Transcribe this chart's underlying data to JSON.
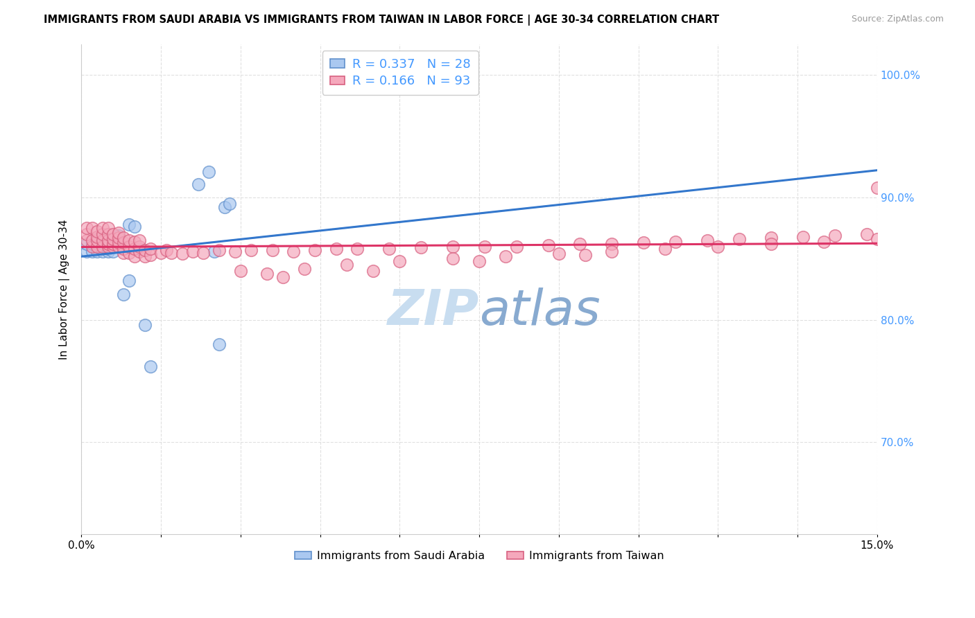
{
  "title": "IMMIGRANTS FROM SAUDI ARABIA VS IMMIGRANTS FROM TAIWAN IN LABOR FORCE | AGE 30-34 CORRELATION CHART",
  "source": "Source: ZipAtlas.com",
  "ylabel": "In Labor Force | Age 30-34",
  "x_min": 0.0,
  "x_max": 0.15,
  "y_min": 0.625,
  "y_max": 1.025,
  "y_ticks": [
    0.7,
    0.8,
    0.9,
    1.0
  ],
  "x_ticks": [
    0.0,
    0.015,
    0.03,
    0.045,
    0.06,
    0.075,
    0.09,
    0.105,
    0.12,
    0.135,
    0.15
  ],
  "saudi_R": 0.337,
  "saudi_N": 28,
  "taiwan_R": 0.166,
  "taiwan_N": 93,
  "saudi_color": "#aac8f0",
  "taiwan_color": "#f5a8bc",
  "saudi_edge": "#6090cc",
  "taiwan_edge": "#d86080",
  "trend_saudi_color": "#3377cc",
  "trend_taiwan_color": "#dd3366",
  "dashed_line_color": "#88aadd",
  "grid_color": "#e0e0e0",
  "right_axis_color": "#4499ff",
  "saudi_x": [
    0.001,
    0.001,
    0.002,
    0.002,
    0.003,
    0.003,
    0.003,
    0.004,
    0.004,
    0.005,
    0.005,
    0.005,
    0.006,
    0.006,
    0.007,
    0.008,
    0.009,
    0.009,
    0.01,
    0.011,
    0.012,
    0.013,
    0.022,
    0.024,
    0.025,
    0.026,
    0.027,
    0.028
  ],
  "saudi_y": [
    0.856,
    0.862,
    0.856,
    0.862,
    0.856,
    0.862,
    0.866,
    0.856,
    0.862,
    0.856,
    0.858,
    0.864,
    0.856,
    0.862,
    0.869,
    0.821,
    0.832,
    0.878,
    0.876,
    0.858,
    0.796,
    0.762,
    0.911,
    0.921,
    0.856,
    0.78,
    0.892,
    0.895
  ],
  "taiwan_x": [
    0.001,
    0.001,
    0.001,
    0.002,
    0.002,
    0.002,
    0.003,
    0.003,
    0.003,
    0.003,
    0.004,
    0.004,
    0.004,
    0.004,
    0.005,
    0.005,
    0.005,
    0.005,
    0.005,
    0.006,
    0.006,
    0.006,
    0.006,
    0.007,
    0.007,
    0.007,
    0.007,
    0.008,
    0.008,
    0.008,
    0.008,
    0.009,
    0.009,
    0.009,
    0.01,
    0.01,
    0.01,
    0.011,
    0.011,
    0.011,
    0.012,
    0.012,
    0.013,
    0.013,
    0.015,
    0.016,
    0.017,
    0.019,
    0.021,
    0.023,
    0.026,
    0.029,
    0.032,
    0.036,
    0.04,
    0.044,
    0.048,
    0.052,
    0.058,
    0.064,
    0.07,
    0.076,
    0.082,
    0.088,
    0.094,
    0.1,
    0.106,
    0.112,
    0.118,
    0.124,
    0.13,
    0.136,
    0.142,
    0.148,
    0.03,
    0.035,
    0.042,
    0.05,
    0.06,
    0.07,
    0.08,
    0.09,
    0.1,
    0.11,
    0.12,
    0.13,
    0.14,
    0.15,
    0.15,
    0.038,
    0.055,
    0.075,
    0.095
  ],
  "taiwan_y": [
    0.865,
    0.87,
    0.875,
    0.86,
    0.865,
    0.875,
    0.86,
    0.865,
    0.868,
    0.872,
    0.86,
    0.865,
    0.87,
    0.875,
    0.86,
    0.862,
    0.865,
    0.87,
    0.875,
    0.86,
    0.862,
    0.866,
    0.87,
    0.86,
    0.863,
    0.867,
    0.871,
    0.855,
    0.858,
    0.863,
    0.867,
    0.855,
    0.86,
    0.865,
    0.852,
    0.858,
    0.864,
    0.856,
    0.86,
    0.865,
    0.852,
    0.857,
    0.853,
    0.858,
    0.855,
    0.857,
    0.855,
    0.854,
    0.856,
    0.855,
    0.857,
    0.856,
    0.857,
    0.857,
    0.856,
    0.857,
    0.858,
    0.858,
    0.858,
    0.859,
    0.86,
    0.86,
    0.86,
    0.861,
    0.862,
    0.862,
    0.863,
    0.864,
    0.865,
    0.866,
    0.867,
    0.868,
    0.869,
    0.87,
    0.84,
    0.838,
    0.842,
    0.845,
    0.848,
    0.85,
    0.852,
    0.854,
    0.856,
    0.858,
    0.86,
    0.862,
    0.864,
    0.866,
    0.908,
    0.835,
    0.84,
    0.848,
    0.853
  ]
}
